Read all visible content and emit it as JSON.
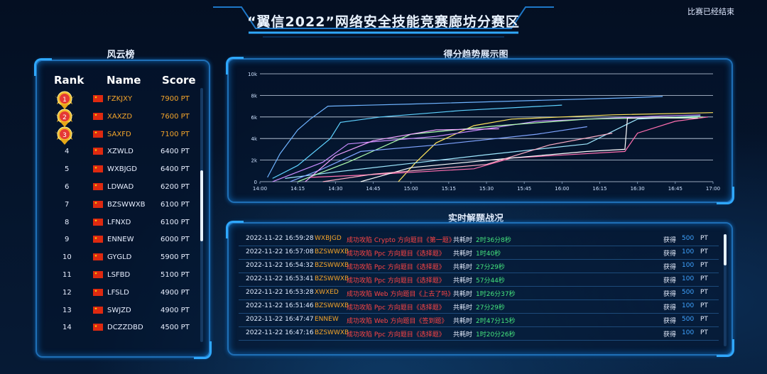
{
  "header": {
    "title": "“翼信2022”网络安全技能竞赛廊坊分赛区",
    "status": "比赛已经结束"
  },
  "leaderboard": {
    "title": "风云榜",
    "columns": [
      "Rank",
      "Name",
      "Score"
    ],
    "rows": [
      {
        "rank": "1",
        "name": "FZKJXY",
        "score": "7900 PT"
      },
      {
        "rank": "2",
        "name": "XAXZD",
        "score": "7600 PT"
      },
      {
        "rank": "3",
        "name": "SAXFD",
        "score": "7100 PT"
      },
      {
        "rank": "4",
        "name": "XZWLD",
        "score": "6400 PT"
      },
      {
        "rank": "5",
        "name": "WXBJGD",
        "score": "6400 PT"
      },
      {
        "rank": "6",
        "name": "LDWAD",
        "score": "6200 PT"
      },
      {
        "rank": "7",
        "name": "BZSWWXB",
        "score": "6100 PT"
      },
      {
        "rank": "8",
        "name": "LFNXD",
        "score": "6100 PT"
      },
      {
        "rank": "9",
        "name": "ENNEW",
        "score": "6000 PT"
      },
      {
        "rank": "10",
        "name": "GYGLD",
        "score": "5900 PT"
      },
      {
        "rank": "11",
        "name": "LSFBD",
        "score": "5100 PT"
      },
      {
        "rank": "12",
        "name": "LFSLD",
        "score": "4900 PT"
      },
      {
        "rank": "13",
        "name": "SWJZD",
        "score": "4900 PT"
      },
      {
        "rank": "14",
        "name": "DCZZDBD",
        "score": "4500 PT"
      }
    ]
  },
  "trend": {
    "title": "得分趋势展示图"
  },
  "chart_data": {
    "type": "line",
    "x_ticks": [
      "14:00",
      "14:15",
      "14:30",
      "14:45",
      "15:00",
      "15:15",
      "15:30",
      "15:45",
      "16:00",
      "16:15",
      "16:30",
      "16:45",
      "17:00"
    ],
    "y_ticks": [
      "0",
      "2k",
      "4k",
      "6k",
      "8k",
      "10k"
    ],
    "ylim": [
      0,
      10000
    ],
    "xlim_minutes": [
      0,
      180
    ],
    "grid": true,
    "series": [
      {
        "color": "#6fb3ff",
        "points": [
          [
            3,
            400
          ],
          [
            8,
            2600
          ],
          [
            15,
            4800
          ],
          [
            20,
            5800
          ],
          [
            27,
            7000
          ],
          [
            60,
            7200
          ],
          [
            150,
            7800
          ],
          [
            160,
            7900
          ]
        ]
      },
      {
        "color": "#5fd2ff",
        "points": [
          [
            5,
            300
          ],
          [
            15,
            1500
          ],
          [
            28,
            4000
          ],
          [
            32,
            5500
          ],
          [
            48,
            6000
          ],
          [
            80,
            6600
          ],
          [
            120,
            7100
          ]
        ]
      },
      {
        "color": "#ffe45c",
        "points": [
          [
            55,
            0
          ],
          [
            62,
            1800
          ],
          [
            70,
            3600
          ],
          [
            85,
            5200
          ],
          [
            100,
            5800
          ],
          [
            140,
            6200
          ],
          [
            180,
            6400
          ]
        ]
      },
      {
        "color": "#c98cff",
        "points": [
          [
            5,
            0
          ],
          [
            25,
            1800
          ],
          [
            35,
            3500
          ],
          [
            70,
            4200
          ],
          [
            110,
            5600
          ],
          [
            160,
            6100
          ],
          [
            175,
            6200
          ]
        ]
      },
      {
        "color": "#ff6fb0",
        "points": [
          [
            20,
            400
          ],
          [
            40,
            600
          ],
          [
            85,
            1200
          ],
          [
            100,
            2200
          ],
          [
            145,
            2800
          ],
          [
            150,
            4500
          ],
          [
            165,
            5600
          ],
          [
            178,
            6000
          ]
        ]
      },
      {
        "color": "#9fe8ff",
        "points": [
          [
            10,
            300
          ],
          [
            30,
            900
          ],
          [
            60,
            1700
          ],
          [
            90,
            2500
          ],
          [
            130,
            3500
          ],
          [
            150,
            5800
          ],
          [
            175,
            6100
          ]
        ]
      },
      {
        "color": "#b0ffb0",
        "points": [
          [
            15,
            0
          ],
          [
            35,
            1800
          ],
          [
            60,
            4400
          ],
          [
            95,
            5200
          ],
          [
            130,
            5800
          ],
          [
            176,
            6000
          ]
        ]
      },
      {
        "color": "#ffffff",
        "points": [
          [
            40,
            0
          ],
          [
            60,
            1300
          ],
          [
            100,
            2200
          ],
          [
            130,
            2800
          ],
          [
            145,
            3000
          ],
          [
            146,
            5900
          ],
          [
            174,
            5900
          ]
        ]
      },
      {
        "color": "#7fa4ff",
        "points": [
          [
            12,
            0
          ],
          [
            25,
            1200
          ],
          [
            40,
            2800
          ],
          [
            70,
            3400
          ],
          [
            110,
            4400
          ],
          [
            130,
            5100
          ]
        ]
      },
      {
        "color": "#f0a0ff",
        "points": [
          [
            18,
            0
          ],
          [
            30,
            2400
          ],
          [
            45,
            3800
          ],
          [
            70,
            4800
          ],
          [
            95,
            4900
          ]
        ]
      },
      {
        "color": "#ffb0c8",
        "points": [
          [
            25,
            0
          ],
          [
            45,
            700
          ],
          [
            60,
            1000
          ],
          [
            90,
            1600
          ],
          [
            115,
            3400
          ],
          [
            140,
            4500
          ]
        ]
      }
    ]
  },
  "feed": {
    "title": "实时解题战况",
    "rows": [
      {
        "time": "2022-11-22 16:59:28",
        "team": "WXBJGD",
        "action": "成功攻陷 Crypto 方向题目《第一题》",
        "dur_label": "共耗时",
        "dur": "2时36分8秒",
        "get": "获得",
        "pts": "500",
        "unit": "PT"
      },
      {
        "time": "2022-11-22 16:57:08",
        "team": "BZSWWXB",
        "action": "成功攻陷 Ppc 方向题目《选择题》",
        "dur_label": "共耗时",
        "dur": "1时40秒",
        "get": "获得",
        "pts": "100",
        "unit": "PT"
      },
      {
        "time": "2022-11-22 16:54:32",
        "team": "BZSWWXB",
        "action": "成功攻陷 Ppc 方向题目《选择题》",
        "dur_label": "共耗时",
        "dur": "27分29秒",
        "get": "获得",
        "pts": "100",
        "unit": "PT"
      },
      {
        "time": "2022-11-22 16:53:41",
        "team": "BZSWWXB",
        "action": "成功攻陷 Ppc 方向题目《选择题》",
        "dur_label": "共耗时",
        "dur": "57分44秒",
        "get": "获得",
        "pts": "100",
        "unit": "PT"
      },
      {
        "time": "2022-11-22 16:53:28",
        "team": "XWXED",
        "action": "成功攻陷 Web 方向题目《上去了吗》",
        "dur_label": "共耗时",
        "dur": "1时26分37秒",
        "get": "获得",
        "pts": "500",
        "unit": "PT"
      },
      {
        "time": "2022-11-22 16:51:46",
        "team": "BZSWWXB",
        "action": "成功攻陷 Ppc 方向题目《选择题》",
        "dur_label": "共耗时",
        "dur": "27分29秒",
        "get": "获得",
        "pts": "100",
        "unit": "PT"
      },
      {
        "time": "2022-11-22 16:47:47",
        "team": "ENNEW",
        "action": "成功攻陷 Web 方向题目《签到题》",
        "dur_label": "共耗时",
        "dur": "2时47分15秒",
        "get": "获得",
        "pts": "500",
        "unit": "PT"
      },
      {
        "time": "2022-11-22 16:47:16",
        "team": "BZSWWXB",
        "action": "成功攻陷 Ppc 方向题目《选择题》",
        "dur_label": "共耗时",
        "dur": "1时20分26秒",
        "get": "获得",
        "pts": "100",
        "unit": "PT"
      }
    ]
  }
}
